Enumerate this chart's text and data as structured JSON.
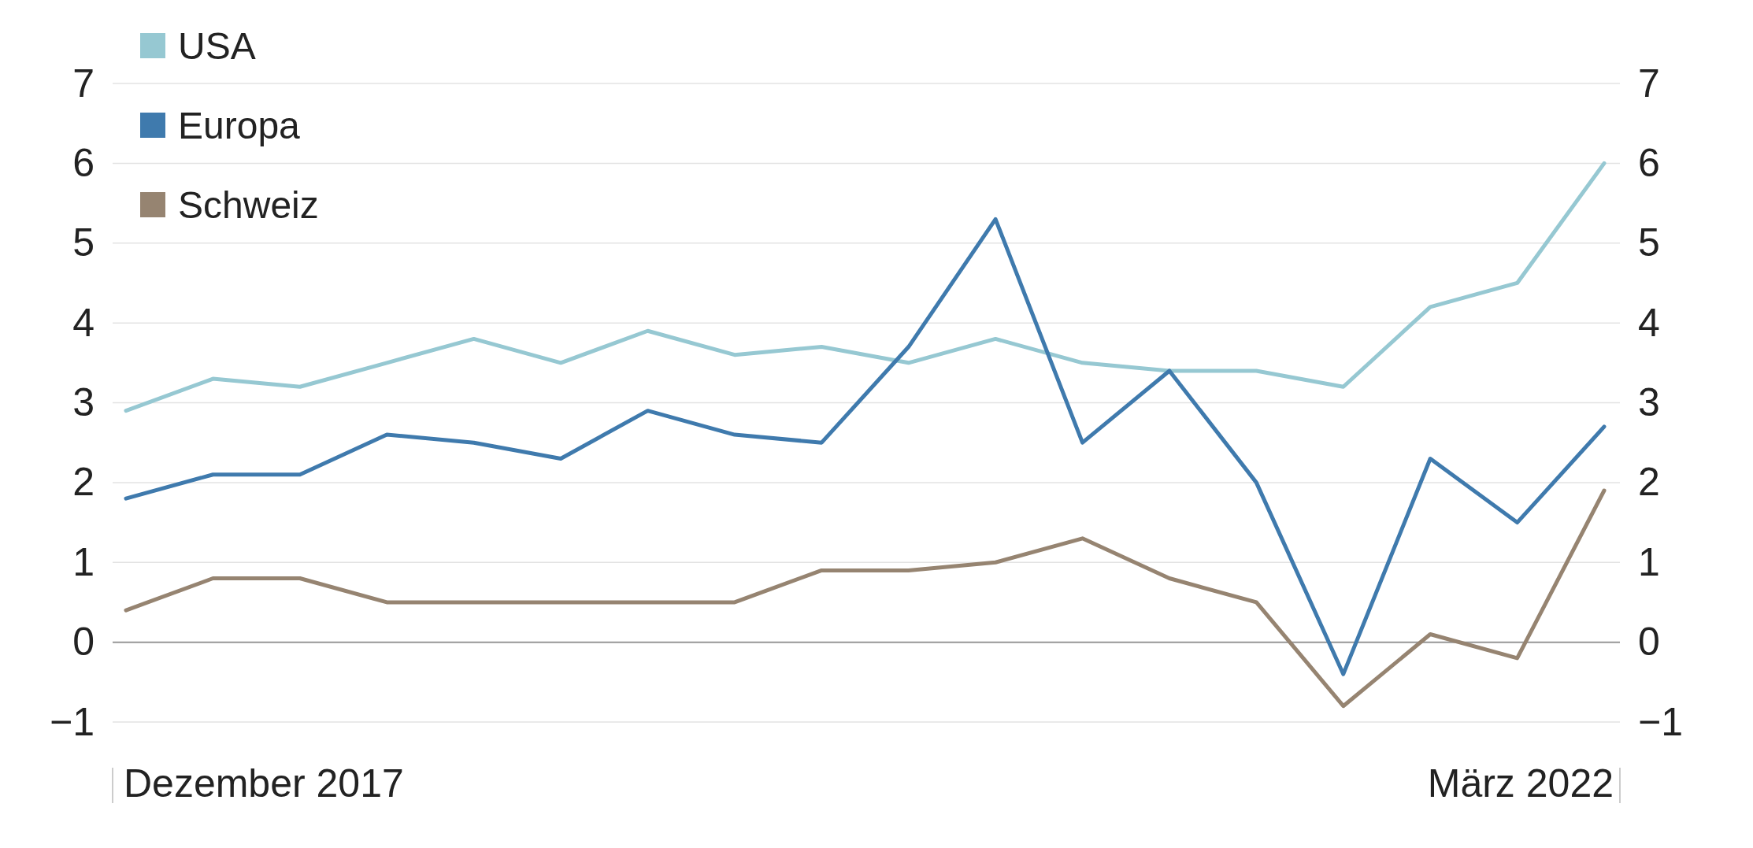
{
  "chart_data": {
    "type": "line",
    "categories": [
      null,
      null,
      null,
      null,
      null,
      null,
      null,
      null,
      null,
      null,
      null,
      null,
      null,
      null,
      null,
      null,
      null,
      null
    ],
    "annotations": [
      "Dezember 2017",
      "März 2022"
    ],
    "series": [
      {
        "name": "USA",
        "color": "#96c8d2",
        "values": [
          2.9,
          3.3,
          3.2,
          3.5,
          3.8,
          3.5,
          3.9,
          3.6,
          3.7,
          3.5,
          3.8,
          3.5,
          3.4,
          3.4,
          3.2,
          4.2,
          4.5,
          6.0
        ]
      },
      {
        "name": "Europa",
        "color": "#3f7aad",
        "values": [
          1.8,
          2.1,
          2.1,
          2.6,
          2.5,
          2.3,
          2.9,
          2.6,
          2.5,
          3.7,
          5.3,
          2.5,
          3.4,
          2.0,
          -0.4,
          2.3,
          1.5,
          2.7
        ]
      },
      {
        "name": "Schweiz",
        "color": "#968471",
        "values": [
          0.4,
          0.8,
          0.8,
          0.5,
          0.5,
          0.5,
          0.5,
          0.5,
          0.9,
          0.9,
          1.0,
          1.3,
          0.8,
          0.5,
          -0.8,
          0.1,
          -0.2,
          1.9
        ]
      }
    ],
    "ylim": [
      -1,
      7
    ],
    "yticks": [
      -1,
      0,
      1,
      2,
      3,
      4,
      5,
      6,
      7
    ],
    "y2lim": [
      -1,
      7
    ],
    "y2ticks": [
      -1,
      0,
      1,
      2,
      3,
      4,
      5,
      6,
      7
    ],
    "ref_lines": [
      {
        "axis": "y",
        "value": 0,
        "color": "#999999"
      }
    ],
    "grid": "y",
    "legend": "top left",
    "marker": "none",
    "line_style": "solid"
  }
}
